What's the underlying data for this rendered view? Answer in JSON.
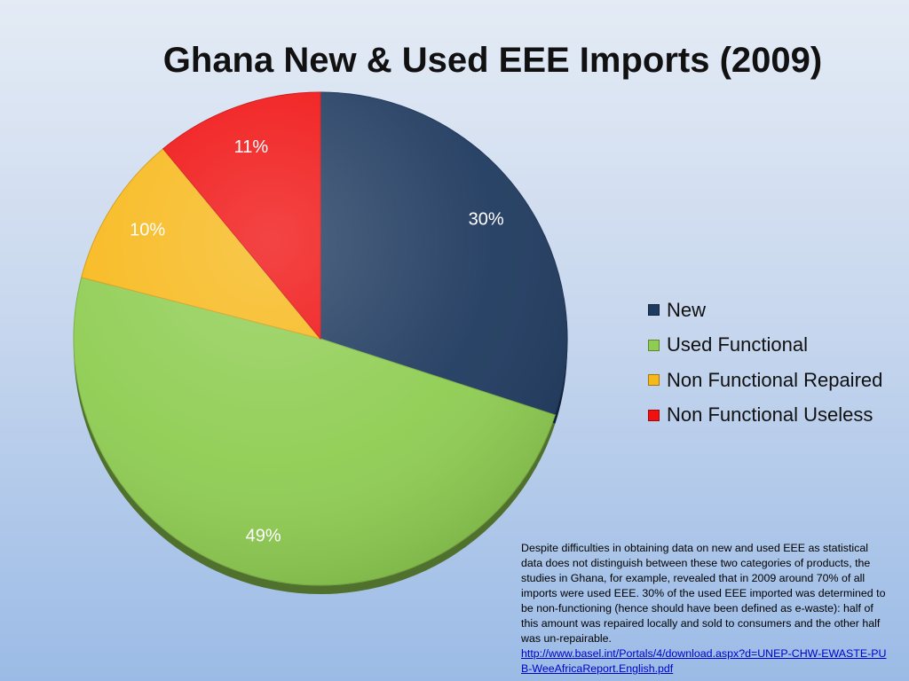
{
  "title": "Ghana New & Used EEE Imports (2009)",
  "note": {
    "text": "Despite difficulties in obtaining data on new and used EEE as statistical data does not distinguish between these two categories of products, the studies in Ghana, for example, revealed that in 2009 around 70% of all imports were used EEE. 30% of the used EEE imported was determined to be non-functioning (hence should have been defined as e-waste): half of this amount was repaired locally and sold to consumers and the other half was un-repairable.",
    "link": "http://www.basel.int/Portals/4/download.aspx?d=UNEP-CHW-EWASTE-PUB-WeeAfricaReport.English.pdf"
  },
  "chart_data": {
    "type": "pie",
    "title": "Ghana New & Used EEE Imports (2009)",
    "legend_position": "right",
    "slices": [
      {
        "label": "New",
        "value": 30,
        "display": "30%",
        "color": "#1f3a5f"
      },
      {
        "label": "Used Functional",
        "value": 49,
        "display": "49%",
        "color": "#8fcd52"
      },
      {
        "label": "Non Functional Repaired",
        "value": 10,
        "display": "10%",
        "color": "#f7b81a"
      },
      {
        "label": "Non Functional Useless",
        "value": 11,
        "display": "11%",
        "color": "#f01010"
      }
    ]
  }
}
